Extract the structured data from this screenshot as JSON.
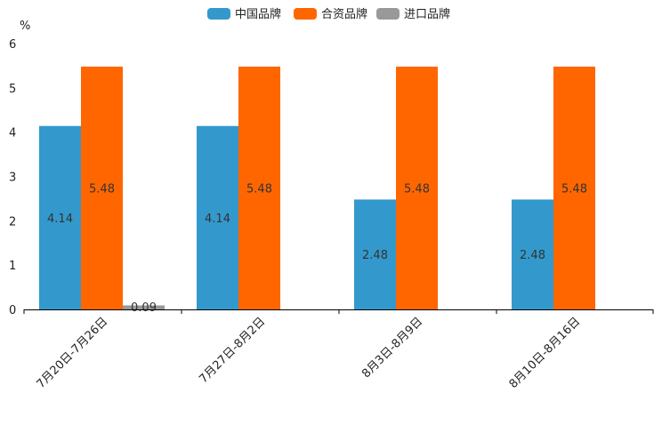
{
  "chart_data": {
    "type": "bar",
    "title": "",
    "xlabel": "",
    "ylabel": "%",
    "ylim": [
      0,
      6
    ],
    "yticks": [
      0,
      1,
      2,
      3,
      4,
      5,
      6
    ],
    "legend_position": "top-center",
    "grid": false,
    "categories": [
      "7月20日-7月26日",
      "7月27日-8月2日",
      "8月3日-8月9日",
      "8月10日-8月16日"
    ],
    "series": [
      {
        "name": "中国品牌",
        "color": "#3399cc",
        "values": [
          4.14,
          4.14,
          2.48,
          2.48
        ],
        "labels": [
          "4.14",
          "4.14",
          "2.48",
          "2.48"
        ]
      },
      {
        "name": "合资品牌",
        "color": "#ff6600",
        "values": [
          5.48,
          5.48,
          5.48,
          5.48
        ],
        "labels": [
          "5.48",
          "5.48",
          "5.48",
          "5.48"
        ]
      },
      {
        "name": "进口品牌",
        "color": "#999999",
        "values": [
          0.09,
          null,
          null,
          null
        ],
        "labels": [
          "0.09",
          null,
          null,
          null
        ]
      }
    ]
  }
}
